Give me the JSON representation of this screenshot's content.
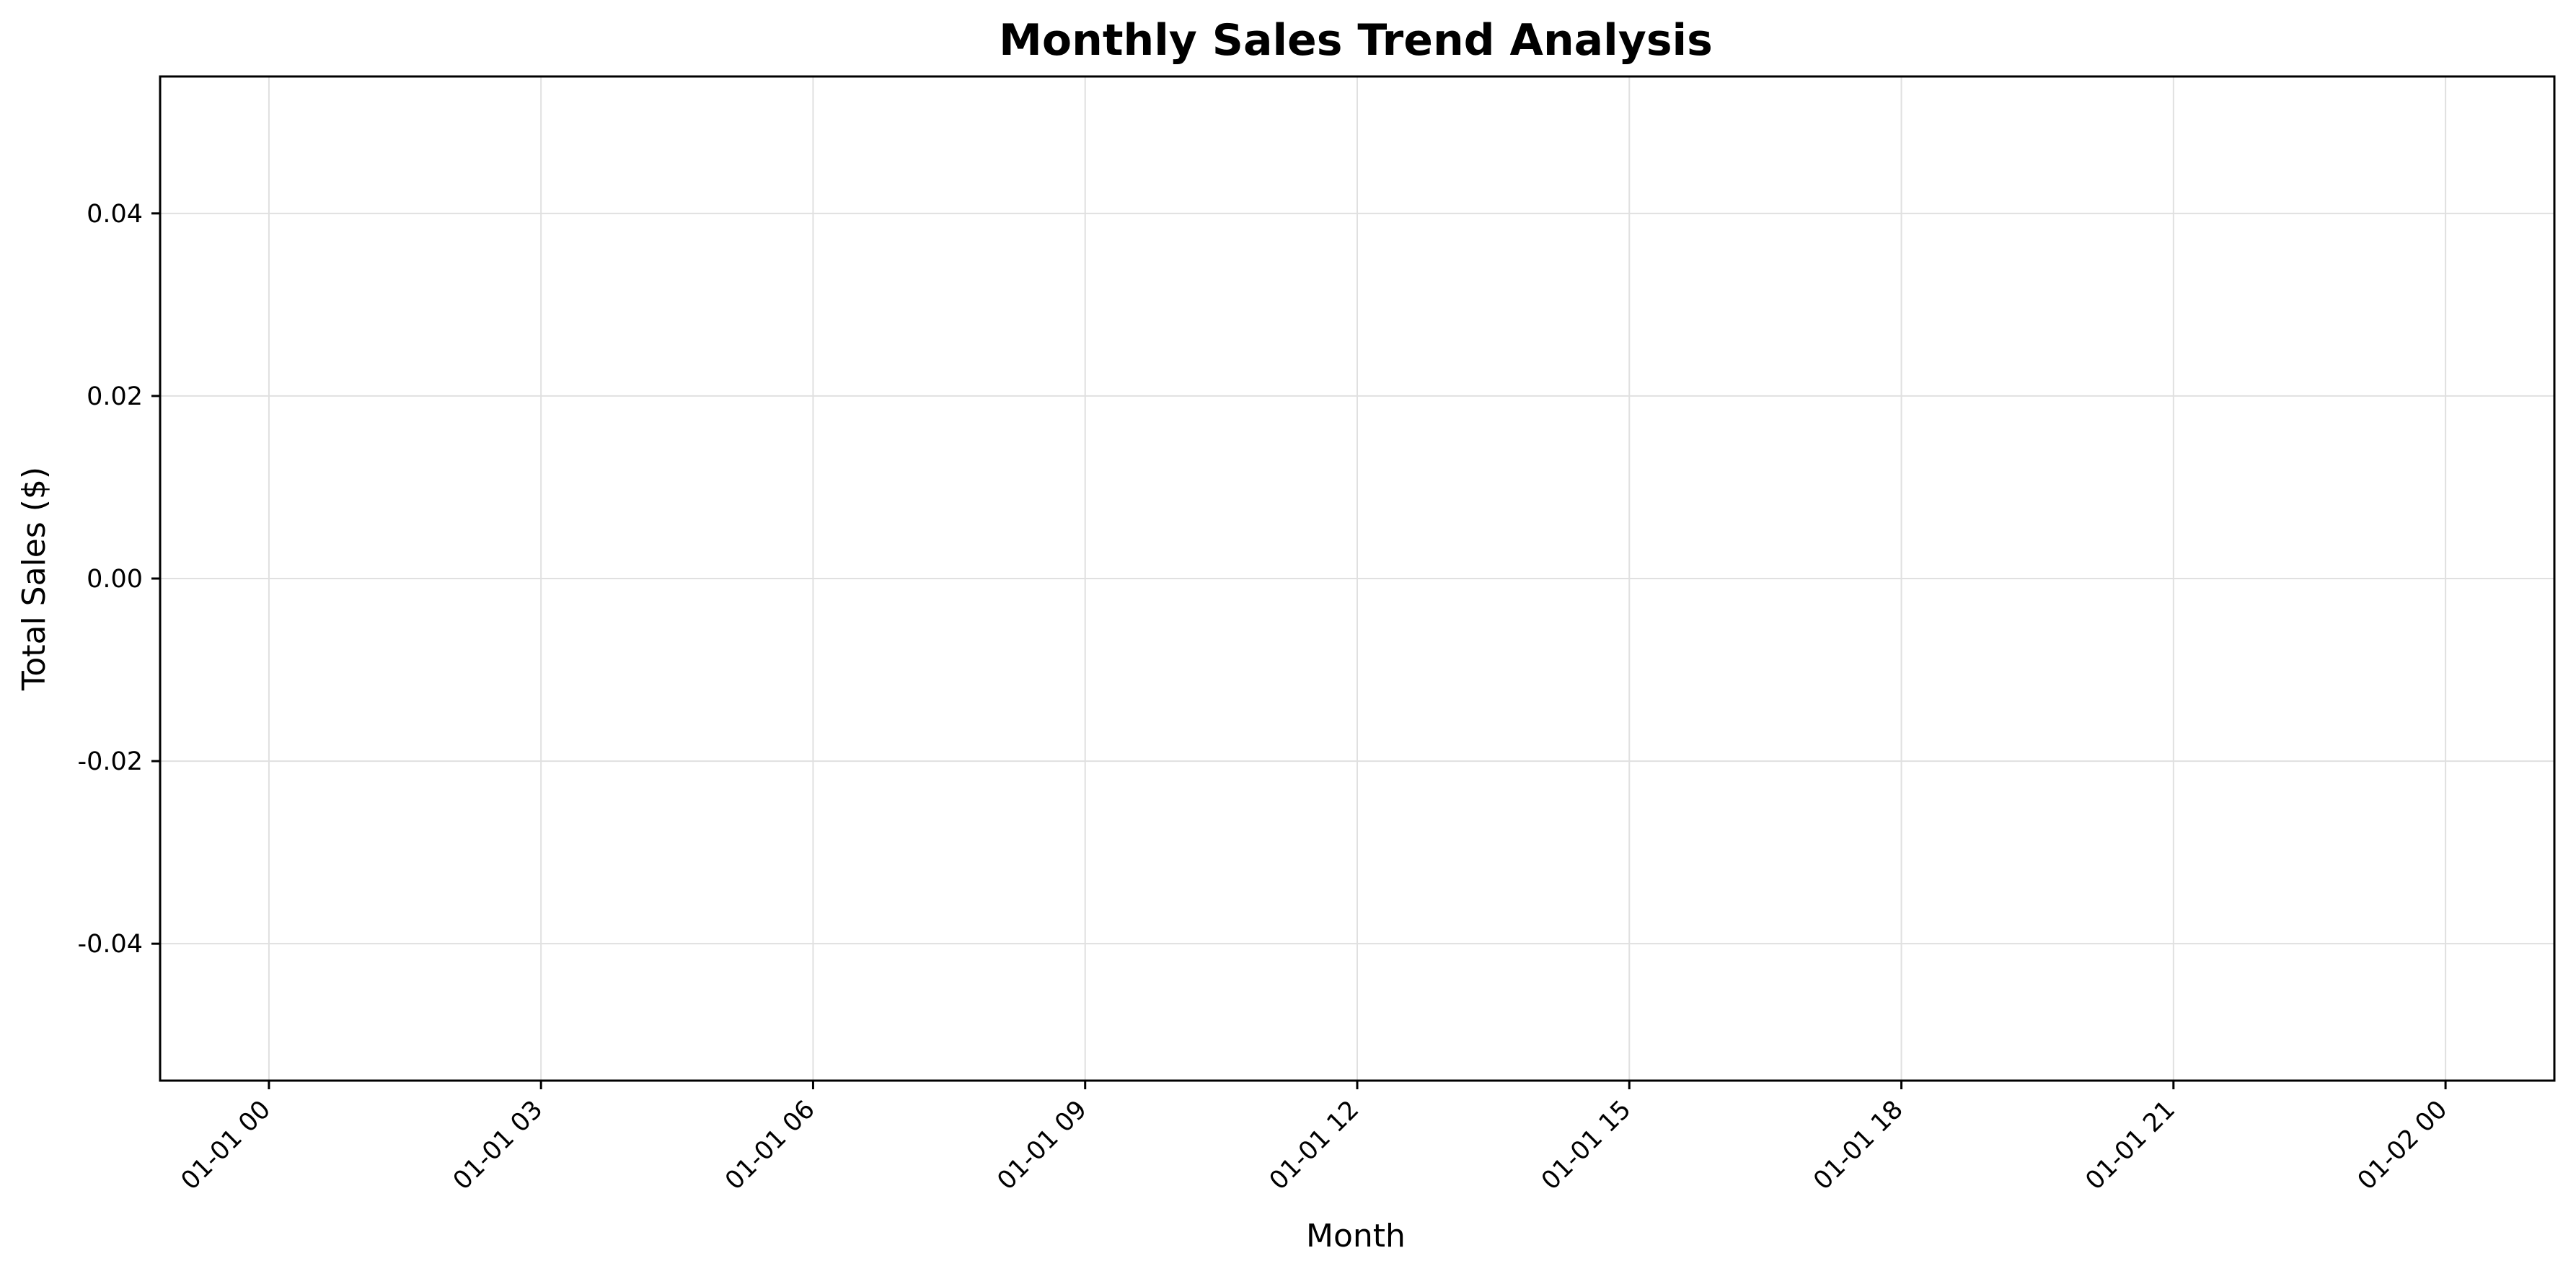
{
  "chart_data": {
    "type": "line",
    "title": "Monthly Sales Trend Analysis",
    "xlabel": "Month",
    "ylabel": "Total Sales ($)",
    "x_ticks": [
      "01-01 00",
      "01-01 03",
      "01-01 06",
      "01-01 09",
      "01-01 12",
      "01-01 15",
      "01-01 18",
      "01-01 21",
      "01-02 00"
    ],
    "x_tick_hours": [
      0,
      3,
      6,
      9,
      12,
      15,
      18,
      21,
      24
    ],
    "xlim_hours": [
      -1.2,
      25.2
    ],
    "y_ticks": [
      "0.04",
      "0.02",
      "0.00",
      "-0.02",
      "-0.04"
    ],
    "y_tick_values": [
      0.04,
      0.02,
      0.0,
      -0.02,
      -0.04
    ],
    "ylim": [
      -0.055,
      0.055
    ],
    "grid": true,
    "series": [],
    "colors": {
      "grid": "#e0e0e0",
      "axis": "#000000",
      "background": "#ffffff"
    }
  }
}
